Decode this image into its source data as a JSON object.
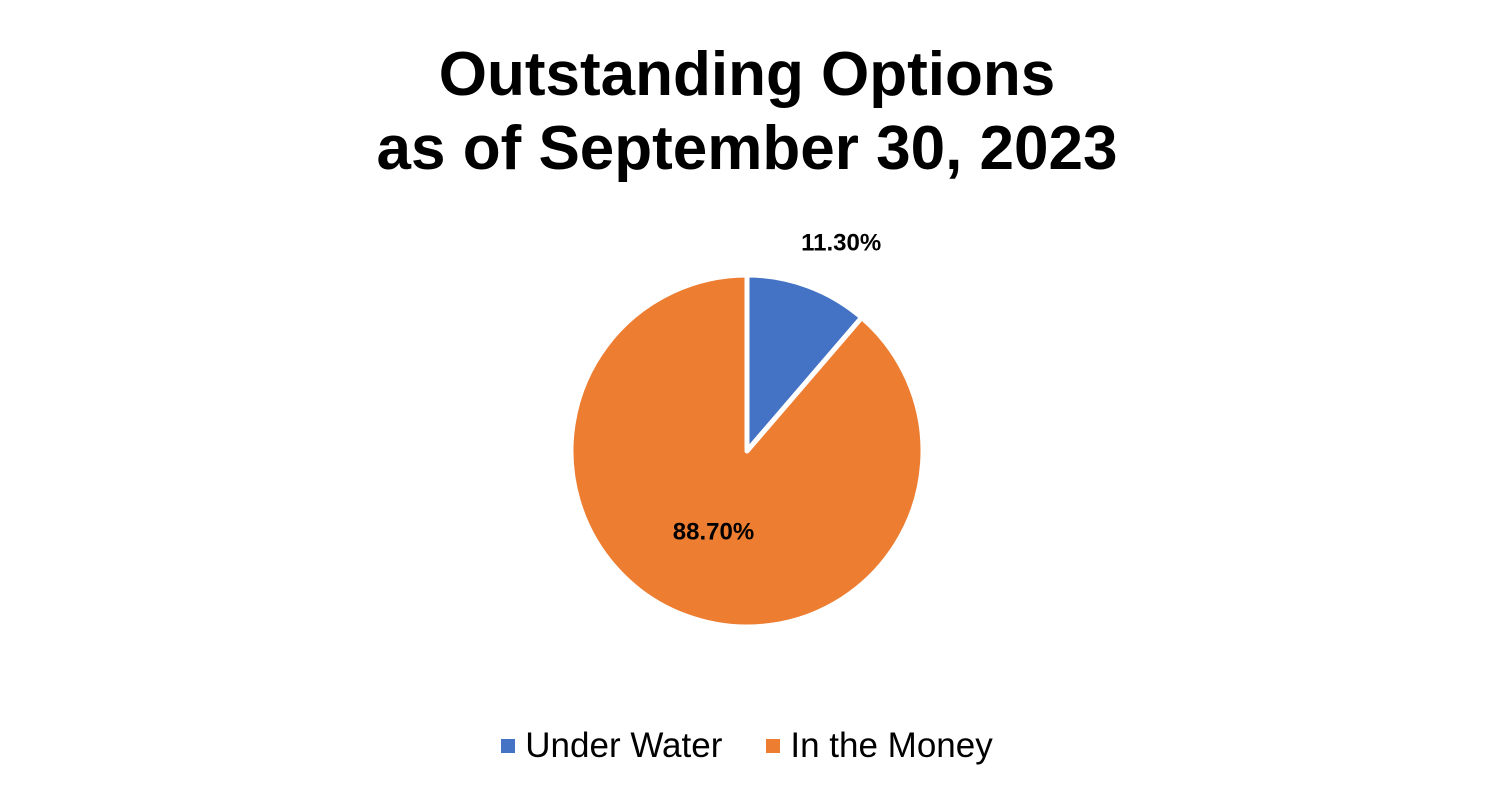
{
  "chart_data": {
    "type": "pie",
    "title": "Outstanding Options as of September 30, 2023",
    "title_lines": [
      "Outstanding Options",
      "as of September 30, 2023"
    ],
    "slices": [
      {
        "name": "Under Water",
        "value": 11.3,
        "label": "11.30%",
        "color": "#4472C4"
      },
      {
        "name": "In the Money",
        "value": 88.7,
        "label": "88.70%",
        "color": "#ED7D31"
      }
    ],
    "legend_position": "bottom",
    "start_angle": "12 o'clock",
    "direction": "clockwise"
  }
}
